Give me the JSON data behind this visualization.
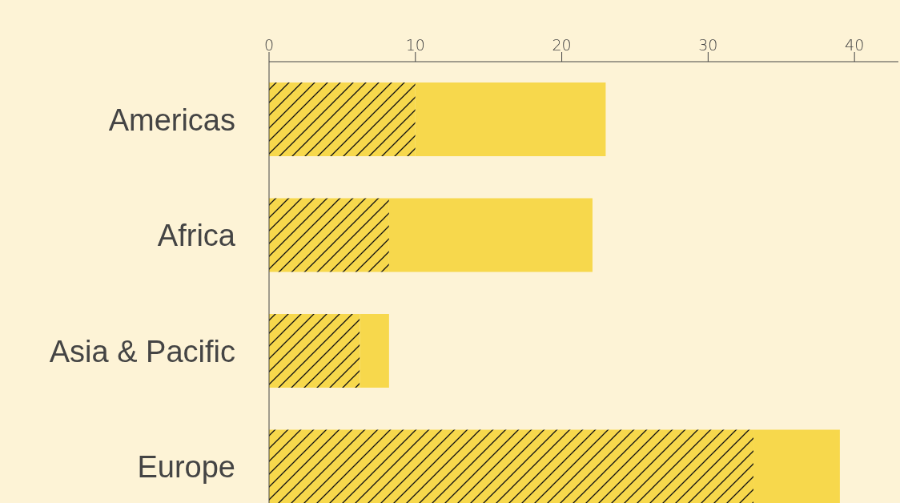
{
  "chart_data": {
    "type": "bar",
    "orientation": "horizontal",
    "stacked": true,
    "categories": [
      "Americas",
      "Africa",
      "Asia & Pacific",
      "Europe"
    ],
    "series": [
      {
        "color": "#f7d84c",
        "values": [
          10,
          8.2,
          6.2,
          33.1
        ]
      },
      {
        "color": "#f7d84c",
        "values": [
          13,
          13.9,
          2,
          5.9
        ]
      }
    ],
    "xlim": [
      0,
      43
    ],
    "xticks": [
      0,
      10,
      20,
      30,
      40
    ]
  }
}
